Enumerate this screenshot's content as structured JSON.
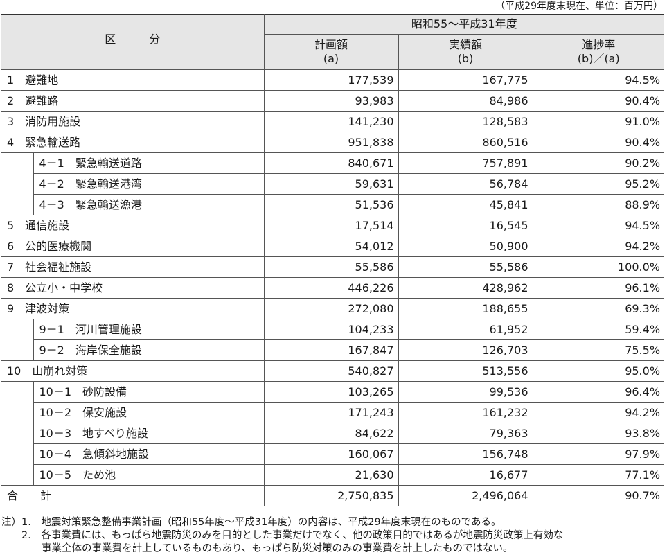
{
  "unit_note": "（平成29年度末現在、単位：百万円）",
  "header": {
    "category": "区　　　分",
    "period": "昭和55～平成31年度",
    "plan": "計画額",
    "plan_sub": "(a)",
    "actual": "実績額",
    "actual_sub": "(b)",
    "rate": "進捗率",
    "rate_sub": "(b)／(a)"
  },
  "rows": [
    {
      "label": "1　避難地",
      "plan": "177,539",
      "actual": "167,775",
      "rate": "94.5%"
    },
    {
      "label": "2　避難路",
      "plan": "93,983",
      "actual": "84,986",
      "rate": "90.4%"
    },
    {
      "label": "3　消防用施設",
      "plan": "141,230",
      "actual": "128,583",
      "rate": "91.0%"
    },
    {
      "label": "4　緊急輸送路",
      "plan": "951,838",
      "actual": "860,516",
      "rate": "90.4%"
    },
    {
      "label": "4－1　緊急輸送道路",
      "plan": "840,671",
      "actual": "757,891",
      "rate": "90.2%"
    },
    {
      "label": "4－2　緊急輸送港湾",
      "plan": "59,631",
      "actual": "56,784",
      "rate": "95.2%"
    },
    {
      "label": "4－3　緊急輸送漁港",
      "plan": "51,536",
      "actual": "45,841",
      "rate": "88.9%"
    },
    {
      "label": "5　通信施設",
      "plan": "17,514",
      "actual": "16,545",
      "rate": "94.5%"
    },
    {
      "label": "6　公的医療機関",
      "plan": "54,012",
      "actual": "50,900",
      "rate": "94.2%"
    },
    {
      "label": "7　社会福祉施設",
      "plan": "55,586",
      "actual": "55,586",
      "rate": "100.0%"
    },
    {
      "label": "8　公立小・中学校",
      "plan": "446,226",
      "actual": "428,962",
      "rate": "96.1%"
    },
    {
      "label": "9　津波対策",
      "plan": "272,080",
      "actual": "188,655",
      "rate": "69.3%"
    },
    {
      "label": "9－1　河川管理施設",
      "plan": "104,233",
      "actual": "61,952",
      "rate": "59.4%"
    },
    {
      "label": "9－2　海岸保全施設",
      "plan": "167,847",
      "actual": "126,703",
      "rate": "75.5%"
    },
    {
      "label": "10　山崩れ対策",
      "plan": "540,827",
      "actual": "513,556",
      "rate": "95.0%"
    },
    {
      "label": "10－1　砂防設備",
      "plan": "103,265",
      "actual": "99,536",
      "rate": "96.4%"
    },
    {
      "label": "10－2　保安施設",
      "plan": "171,243",
      "actual": "161,232",
      "rate": "94.2%"
    },
    {
      "label": "10－3　地すべり施設",
      "plan": "84,622",
      "actual": "79,363",
      "rate": "93.8%"
    },
    {
      "label": "10－4　急傾斜地施設",
      "plan": "160,067",
      "actual": "156,748",
      "rate": "97.9%"
    },
    {
      "label": "10－5　ため池",
      "plan": "21,630",
      "actual": "16,677",
      "rate": "77.1%"
    },
    {
      "label": "合　　計",
      "plan": "2,750,835",
      "actual": "2,496,064",
      "rate": "90.7%"
    }
  ],
  "notes": [
    "注）1.　地震対策緊急整備事業計画（昭和55年度～平成31年度）の内容は、平成29年度末現在のものである。",
    "　　2.　各事業費には、もっぱら地震防災のみを目的とした事業だけでなく、他の政策目的ではあるが地震防災政策上有効な",
    "　　　　事業全体の事業費を計上しているものもあり、もっぱら防災対策のみの事業費を計上したものではない。"
  ]
}
